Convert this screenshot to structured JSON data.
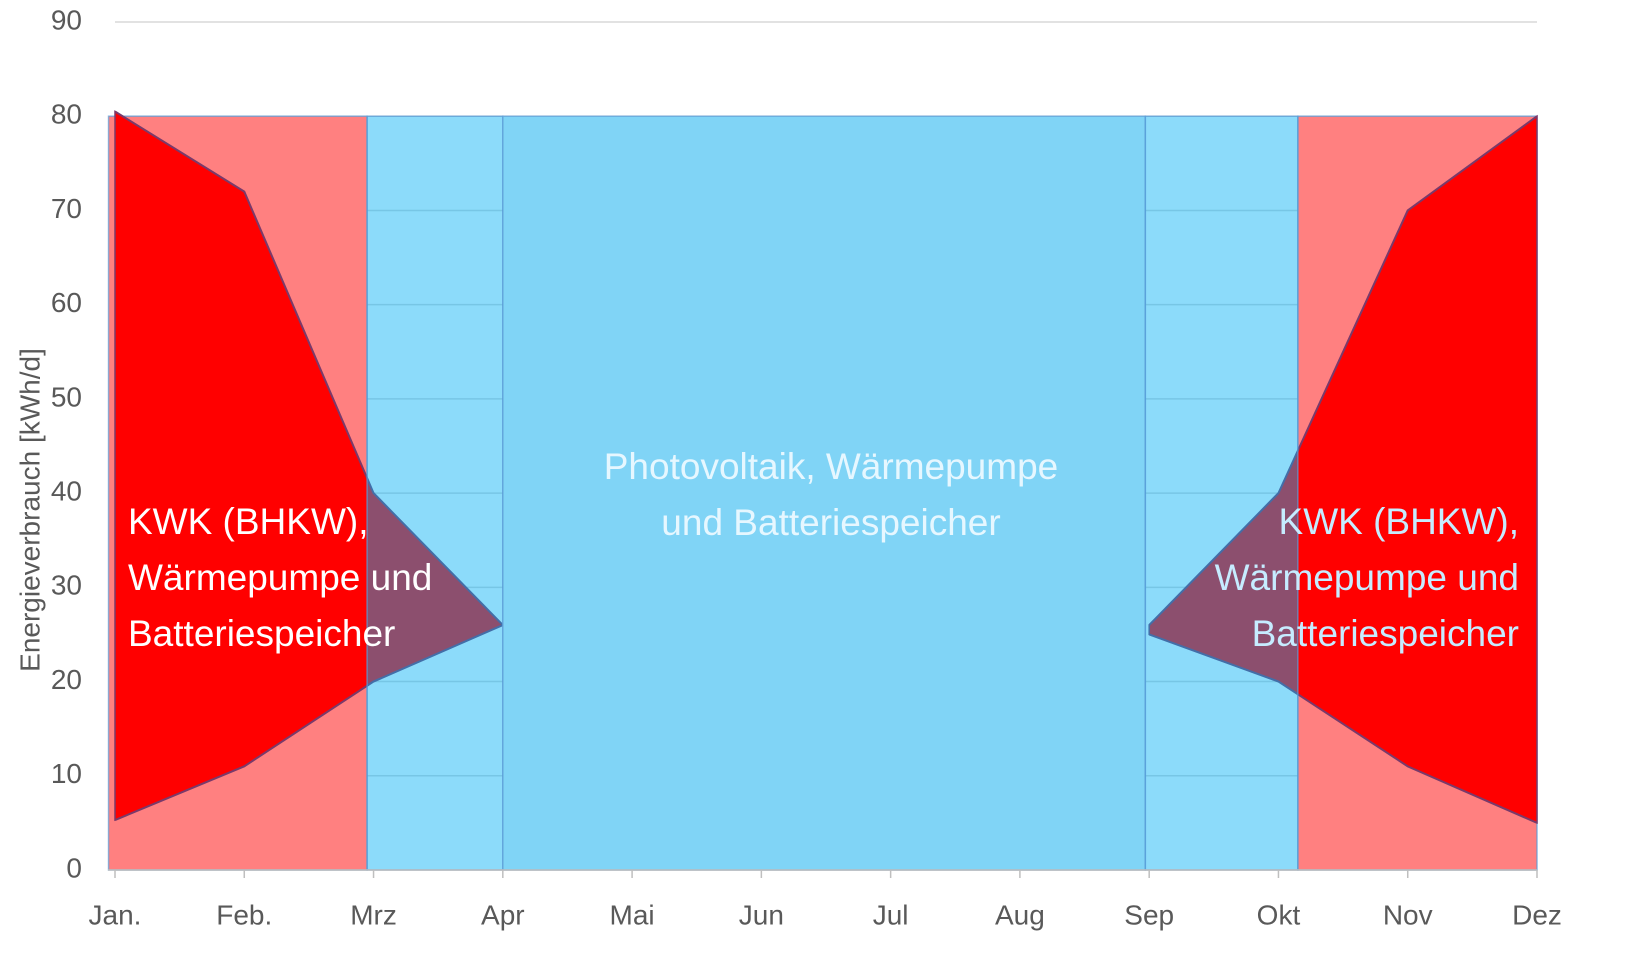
{
  "chart_data": {
    "type": "area",
    "y_label": "Energieverbrauch [kWh/d]",
    "categories": [
      "Jan.",
      "Feb.",
      "Mrz",
      "Apr",
      "Mai",
      "Jun",
      "Jul",
      "Aug",
      "Sep",
      "Okt",
      "Nov",
      "Dez"
    ],
    "series": [
      {
        "color": "#ff0000",
        "values": [
          80.5,
          72,
          40,
          26,
          null,
          null,
          null,
          null,
          26,
          40,
          70,
          80
        ]
      },
      {
        "color": "#ff0000",
        "values": [
          5.3,
          11,
          20,
          26,
          null,
          null,
          null,
          null,
          25,
          20,
          11,
          5
        ]
      }
    ],
    "bands": [
      {
        "from": -0.05,
        "to": 1.95,
        "top": 80,
        "color": "#ff8080",
        "layer": "back"
      },
      {
        "from": 9.15,
        "to": 11,
        "top": 80,
        "color": "#ff8080",
        "layer": "back"
      },
      {
        "from": 1.95,
        "to": 3,
        "top": 80,
        "color": "rgba(0,175,245,0.45)",
        "layer": "front"
      },
      {
        "from": 3,
        "to": 7.97,
        "top": 80,
        "color": "#80d4f6",
        "layer": "front"
      },
      {
        "from": 7.97,
        "to": 9.15,
        "top": 80,
        "color": "rgba(0,175,245,0.45)",
        "layer": "front"
      }
    ],
    "annotations": [
      {
        "lines": [
          "KWK (BHKW),",
          "Wärmepumpe und",
          "Batteriespeicher"
        ],
        "anchor": "start",
        "color": "#ffffff"
      },
      {
        "lines": [
          "Photovoltaik, Wärmepumpe",
          "und Batteriespeicher"
        ],
        "anchor": "middle",
        "color": "#e6f7ff"
      },
      {
        "lines": [
          "KWK (BHKW),",
          "Wärmepumpe und",
          "Batteriespeicher"
        ],
        "anchor": "end",
        "color": "#c6ecff"
      }
    ],
    "ylim": [
      0,
      90
    ],
    "yticks": [
      0,
      10,
      20,
      30,
      40,
      50,
      60,
      70,
      80,
      90
    ],
    "grid": true
  }
}
